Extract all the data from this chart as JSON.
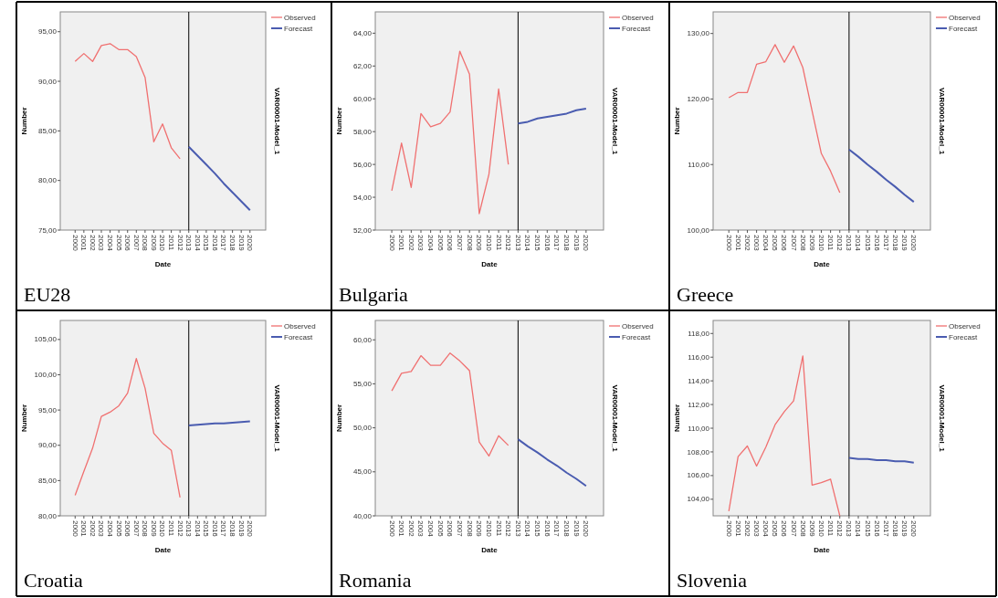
{
  "chart_data": [
    {
      "type": "line",
      "title": "EU28",
      "xlabel": "Date",
      "ylabel": "Number",
      "y2label": "VAR00001-Model_1",
      "legend": "top right",
      "xlim": [
        1998.3,
        2021.8
      ],
      "xticks": [
        2000,
        2001,
        2002,
        2003,
        2004,
        2005,
        2006,
        2007,
        2008,
        2009,
        2010,
        2011,
        2012,
        2013,
        2014,
        2015,
        2016,
        2017,
        2018,
        2019,
        2020
      ],
      "ylim": [
        75,
        97
      ],
      "yticks": [
        {
          "value": 75,
          "label": "75,00"
        },
        {
          "value": 80,
          "label": "80,00"
        },
        {
          "value": 85,
          "label": "85,00"
        },
        {
          "value": 90,
          "label": "90,00"
        },
        {
          "value": 95,
          "label": "95,00"
        }
      ],
      "ref_lines": [
        {
          "axis": "x",
          "value": 2013,
          "color": "#000000"
        }
      ],
      "series": [
        {
          "name": "Observed",
          "color": "#f07070",
          "x": [
            2000,
            2001,
            2002,
            2003,
            2004,
            2005,
            2006,
            2007,
            2008,
            2009,
            2010,
            2011,
            2012
          ],
          "values": [
            92.0,
            92.8,
            92.0,
            93.6,
            93.8,
            93.2,
            93.2,
            92.5,
            90.4,
            83.9,
            85.7,
            83.3,
            82.2
          ]
        },
        {
          "name": "Forecast",
          "color": "#4a5cb0",
          "x": [
            2013,
            2014,
            2015,
            2016,
            2017,
            2018,
            2019,
            2020
          ],
          "values": [
            83.4,
            82.5,
            81.6,
            80.7,
            79.7,
            78.8,
            77.9,
            77.0
          ]
        }
      ]
    },
    {
      "type": "line",
      "title": "Bulgaria",
      "xlabel": "Date",
      "ylabel": "Number",
      "y2label": "VAR00001-Model_1",
      "legend": "top right",
      "xlim": [
        1998.3,
        2021.8
      ],
      "xticks": [
        2000,
        2001,
        2002,
        2003,
        2004,
        2005,
        2006,
        2007,
        2008,
        2009,
        2010,
        2011,
        2012,
        2013,
        2014,
        2015,
        2016,
        2017,
        2018,
        2019,
        2020
      ],
      "ylim": [
        52,
        65.3
      ],
      "yticks": [
        {
          "value": 52,
          "label": "52,00"
        },
        {
          "value": 54,
          "label": "54,00"
        },
        {
          "value": 56,
          "label": "56,00"
        },
        {
          "value": 58,
          "label": "58,00"
        },
        {
          "value": 60,
          "label": "60,00"
        },
        {
          "value": 62,
          "label": "62,00"
        },
        {
          "value": 64,
          "label": "64,00"
        }
      ],
      "ref_lines": [
        {
          "axis": "x",
          "value": 2013,
          "color": "#000000"
        }
      ],
      "series": [
        {
          "name": "Observed",
          "color": "#f07070",
          "x": [
            2000,
            2001,
            2002,
            2003,
            2004,
            2005,
            2006,
            2007,
            2008,
            2009,
            2010,
            2011,
            2012
          ],
          "values": [
            54.4,
            57.3,
            54.6,
            59.1,
            58.3,
            58.5,
            59.2,
            62.9,
            61.5,
            53.0,
            55.4,
            60.6,
            56.0
          ]
        },
        {
          "name": "Forecast",
          "color": "#4a5cb0",
          "x": [
            2013,
            2014,
            2015,
            2016,
            2017,
            2018,
            2019,
            2020
          ],
          "values": [
            58.5,
            58.6,
            58.8,
            58.9,
            59.0,
            59.1,
            59.3,
            59.4
          ]
        }
      ]
    },
    {
      "type": "line",
      "title": "Greece",
      "xlabel": "Date",
      "ylabel": "Number",
      "y2label": "VAR00001-Model_1",
      "legend": "top right",
      "xlim": [
        1998.3,
        2021.8
      ],
      "xticks": [
        2000,
        2001,
        2002,
        2003,
        2004,
        2005,
        2006,
        2007,
        2008,
        2009,
        2010,
        2011,
        2012,
        2013,
        2014,
        2015,
        2016,
        2017,
        2018,
        2019,
        2020
      ],
      "ylim": [
        100,
        133.3
      ],
      "yticks": [
        {
          "value": 100,
          "label": "100,00"
        },
        {
          "value": 110,
          "label": "110,00"
        },
        {
          "value": 120,
          "label": "120,00"
        },
        {
          "value": 130,
          "label": "130,00"
        }
      ],
      "ref_lines": [
        {
          "axis": "x",
          "value": 2013,
          "color": "#000000"
        }
      ],
      "series": [
        {
          "name": "Observed",
          "color": "#f07070",
          "x": [
            2000,
            2001,
            2002,
            2003,
            2004,
            2005,
            2006,
            2007,
            2008,
            2009,
            2010,
            2011,
            2012
          ],
          "values": [
            120.2,
            121.0,
            121.0,
            125.3,
            125.7,
            128.3,
            125.6,
            128.1,
            124.8,
            118.2,
            111.7,
            109.0,
            105.7
          ]
        },
        {
          "name": "Forecast",
          "color": "#4a5cb0",
          "x": [
            2013,
            2014,
            2015,
            2016,
            2017,
            2018,
            2019,
            2020
          ],
          "values": [
            112.3,
            111.2,
            110.0,
            108.9,
            107.7,
            106.6,
            105.4,
            104.3
          ]
        }
      ]
    },
    {
      "type": "line",
      "title": "Croatia",
      "xlabel": "Date",
      "ylabel": "Number",
      "y2label": "VAR00001-Model_1",
      "legend": "top right",
      "xlim": [
        1998.3,
        2021.8
      ],
      "xticks": [
        2000,
        2001,
        2002,
        2003,
        2004,
        2005,
        2006,
        2007,
        2008,
        2009,
        2010,
        2011,
        2012,
        2013,
        2014,
        2015,
        2016,
        2017,
        2018,
        2019,
        2020
      ],
      "ylim": [
        80,
        107.7
      ],
      "yticks": [
        {
          "value": 80,
          "label": "80,00"
        },
        {
          "value": 85,
          "label": "85,00"
        },
        {
          "value": 90,
          "label": "90,00"
        },
        {
          "value": 95,
          "label": "95,00"
        },
        {
          "value": 100,
          "label": "100,00"
        },
        {
          "value": 105,
          "label": "105,00"
        }
      ],
      "ref_lines": [
        {
          "axis": "x",
          "value": 2013,
          "color": "#000000"
        }
      ],
      "series": [
        {
          "name": "Observed",
          "color": "#f07070",
          "x": [
            2000,
            2001,
            2002,
            2003,
            2004,
            2005,
            2006,
            2007,
            2008,
            2009,
            2010,
            2011,
            2012
          ],
          "values": [
            82.9,
            86.3,
            89.6,
            94.1,
            94.7,
            95.6,
            97.4,
            102.3,
            98.1,
            91.7,
            90.3,
            89.3,
            82.6
          ]
        },
        {
          "name": "Forecast",
          "color": "#4a5cb0",
          "x": [
            2013,
            2014,
            2015,
            2016,
            2017,
            2018,
            2019,
            2020
          ],
          "values": [
            92.8,
            92.9,
            93.0,
            93.1,
            93.1,
            93.2,
            93.3,
            93.4
          ]
        }
      ]
    },
    {
      "type": "line",
      "title": "Romania",
      "xlabel": "Date",
      "ylabel": "Number",
      "y2label": "VAR00001-Model_1",
      "legend": "top right",
      "xlim": [
        1998.3,
        2021.8
      ],
      "xticks": [
        2000,
        2001,
        2002,
        2003,
        2004,
        2005,
        2006,
        2007,
        2008,
        2009,
        2010,
        2011,
        2012,
        2013,
        2014,
        2015,
        2016,
        2017,
        2018,
        2019,
        2020
      ],
      "ylim": [
        40,
        62.2
      ],
      "yticks": [
        {
          "value": 40,
          "label": "40,00"
        },
        {
          "value": 45,
          "label": "45,00"
        },
        {
          "value": 50,
          "label": "50,00"
        },
        {
          "value": 55,
          "label": "55,00"
        },
        {
          "value": 60,
          "label": "60,00"
        }
      ],
      "ref_lines": [
        {
          "axis": "x",
          "value": 2013,
          "color": "#000000"
        }
      ],
      "series": [
        {
          "name": "Observed",
          "color": "#f07070",
          "x": [
            2000,
            2001,
            2002,
            2003,
            2004,
            2005,
            2006,
            2007,
            2008,
            2009,
            2010,
            2011,
            2012
          ],
          "values": [
            54.2,
            56.2,
            56.4,
            58.2,
            57.1,
            57.1,
            58.5,
            57.6,
            56.5,
            48.4,
            46.8,
            49.1,
            48.0
          ]
        },
        {
          "name": "Forecast",
          "color": "#4a5cb0",
          "x": [
            2013,
            2014,
            2015,
            2016,
            2017,
            2018,
            2019,
            2020
          ],
          "values": [
            48.7,
            47.9,
            47.2,
            46.4,
            45.7,
            44.9,
            44.2,
            43.4
          ]
        }
      ]
    },
    {
      "type": "line",
      "title": "Slovenia",
      "xlabel": "Date",
      "ylabel": "Number",
      "y2label": "VAR00001-Model_1",
      "legend": "top right",
      "xlim": [
        1998.3,
        2021.8
      ],
      "xticks": [
        2000,
        2001,
        2002,
        2003,
        2004,
        2005,
        2006,
        2007,
        2008,
        2009,
        2010,
        2011,
        2012,
        2013,
        2014,
        2015,
        2016,
        2017,
        2018,
        2019,
        2020
      ],
      "ylim": [
        102.6,
        119.1
      ],
      "yticks": [
        {
          "value": 104,
          "label": "104,00"
        },
        {
          "value": 106,
          "label": "106,00"
        },
        {
          "value": 108,
          "label": "108,00"
        },
        {
          "value": 110,
          "label": "110,00"
        },
        {
          "value": 112,
          "label": "112,00"
        },
        {
          "value": 114,
          "label": "114,00"
        },
        {
          "value": 116,
          "label": "116,00"
        },
        {
          "value": 118,
          "label": "118,00"
        }
      ],
      "ref_lines": [
        {
          "axis": "x",
          "value": 2013,
          "color": "#000000"
        }
      ],
      "series": [
        {
          "name": "Observed",
          "color": "#f07070",
          "x": [
            2000,
            2001,
            2002,
            2003,
            2004,
            2005,
            2006,
            2007,
            2008,
            2009,
            2010,
            2011,
            2012
          ],
          "values": [
            103.0,
            107.6,
            108.5,
            106.8,
            108.4,
            110.3,
            111.4,
            112.3,
            116.1,
            105.2,
            105.4,
            105.7,
            102.6
          ]
        },
        {
          "name": "Forecast",
          "color": "#4a5cb0",
          "x": [
            2013,
            2014,
            2015,
            2016,
            2017,
            2018,
            2019,
            2020
          ],
          "values": [
            107.5,
            107.4,
            107.4,
            107.3,
            107.3,
            107.2,
            107.2,
            107.1
          ]
        }
      ]
    }
  ]
}
